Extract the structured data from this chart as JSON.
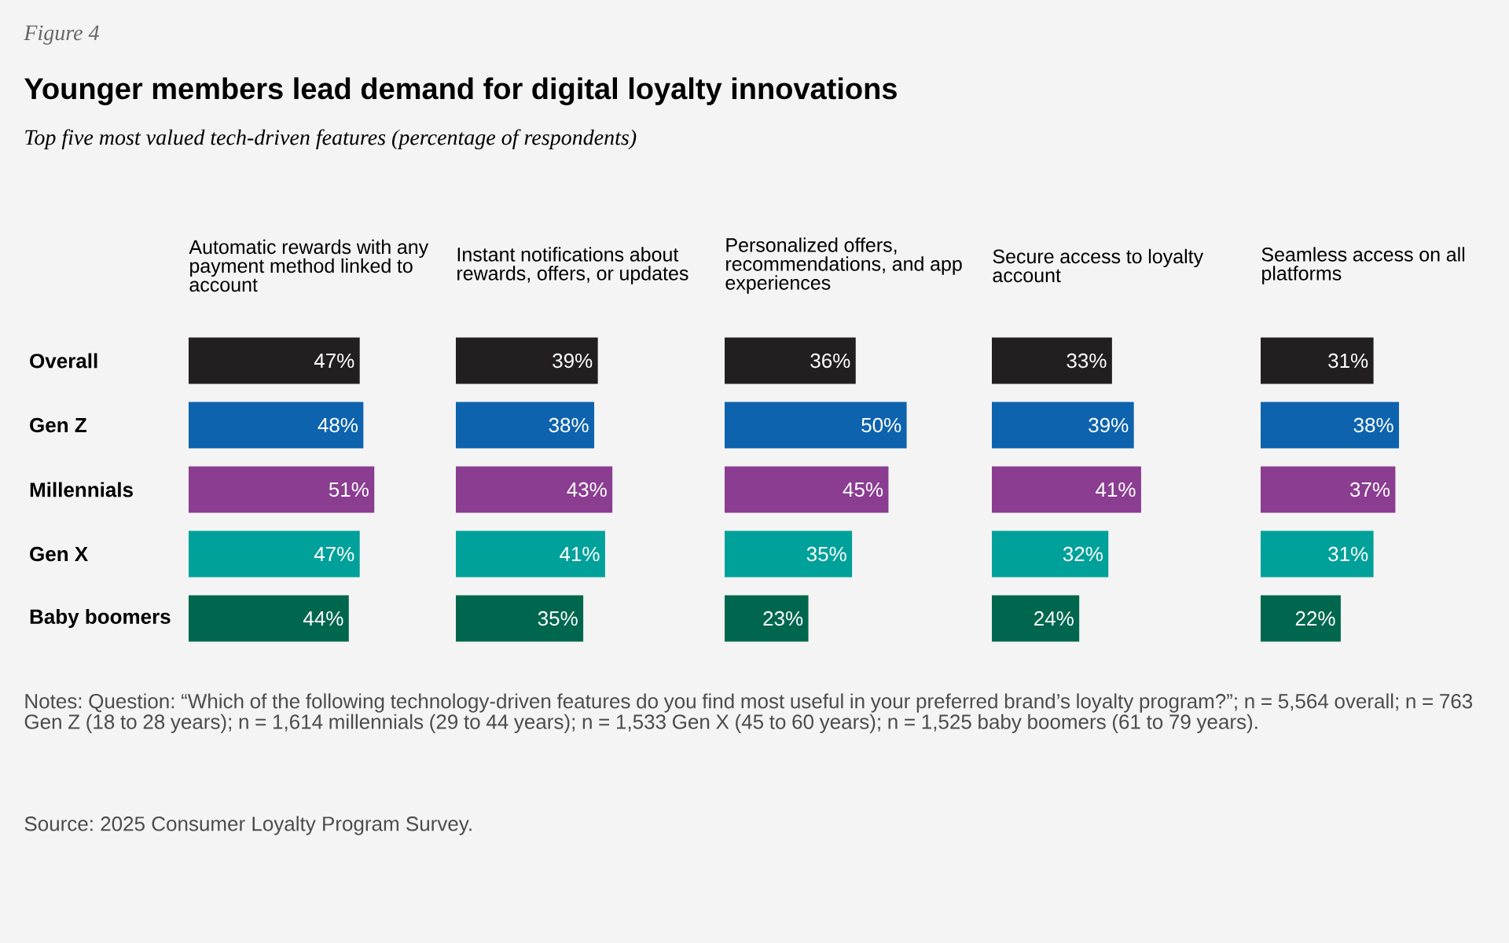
{
  "chart_data": [
    {
      "type": "other",
      "title": "Younger members lead demand for digital loyalty innovations",
      "subtitle": "Top five most valued tech-driven features (percentage of respondents)",
      "annotations": [
        "Figure 4",
        "Notes: Question: “Which of the following technology-driven features do you find most useful in your preferred brand’s loyalty program?”; n = 5,564 overall; n = 763 Gen Z (18 to 28 years); n = 1,614 millennials (29 to 44 years); n = 1,533 Gen X (45 to 60 years); n = 1,525 baby boomers (61 to 79 years).",
        "Source: 2025 Consumer Loyalty Program Survey."
      ]
    },
    {
      "type": "bar",
      "orientation": "horizontal",
      "title": "Automatic rewards with any payment method linked to account",
      "categories": [
        "Overall",
        "Gen Z",
        "Millennials",
        "Gen X",
        "Baby boomers"
      ],
      "values": [
        47,
        48,
        51,
        47,
        44
      ],
      "value_labels": [
        "47%",
        "48%",
        "51%",
        "47%",
        "44%"
      ],
      "colors": [
        "#231f20",
        "#0d63ad",
        "#8a3d91",
        "#00a19a",
        "#00674f"
      ],
      "tick_labels": "y"
    },
    {
      "type": "bar",
      "orientation": "horizontal",
      "title": "Instant notifications about rewards, offers, or updates",
      "categories": [
        null,
        null,
        null,
        null,
        null
      ],
      "values": [
        39,
        38,
        43,
        41,
        35
      ],
      "value_labels": [
        "39%",
        "38%",
        "43%",
        "41%",
        "35%"
      ],
      "colors": [
        "#231f20",
        "#0d63ad",
        "#8a3d91",
        "#00a19a",
        "#00674f"
      ]
    },
    {
      "type": "bar",
      "orientation": "horizontal",
      "title": "Personalized offers, recommendations, and app experiences",
      "categories": [
        null,
        null,
        null,
        null,
        null
      ],
      "values": [
        36,
        50,
        45,
        35,
        23
      ],
      "value_labels": [
        "36%",
        "50%",
        "45%",
        "35%",
        "23%"
      ],
      "colors": [
        "#231f20",
        "#0d63ad",
        "#8a3d91",
        "#00a19a",
        "#00674f"
      ]
    },
    {
      "type": "bar",
      "orientation": "horizontal",
      "title": "Secure access to loyalty account",
      "categories": [
        null,
        null,
        null,
        null,
        null
      ],
      "values": [
        33,
        39,
        41,
        32,
        24
      ],
      "value_labels": [
        "33%",
        "39%",
        "41%",
        "32%",
        "24%"
      ],
      "colors": [
        "#231f20",
        "#0d63ad",
        "#8a3d91",
        "#00a19a",
        "#00674f"
      ]
    },
    {
      "type": "bar",
      "orientation": "horizontal",
      "title": "Seamless access on all platforms",
      "categories": [
        null,
        null,
        null,
        null,
        null
      ],
      "values": [
        31,
        38,
        37,
        31,
        22
      ],
      "value_labels": [
        "31%",
        "38%",
        "37%",
        "31%",
        "22%"
      ],
      "colors": [
        "#231f20",
        "#0d63ad",
        "#8a3d91",
        "#00a19a",
        "#00674f"
      ]
    }
  ]
}
